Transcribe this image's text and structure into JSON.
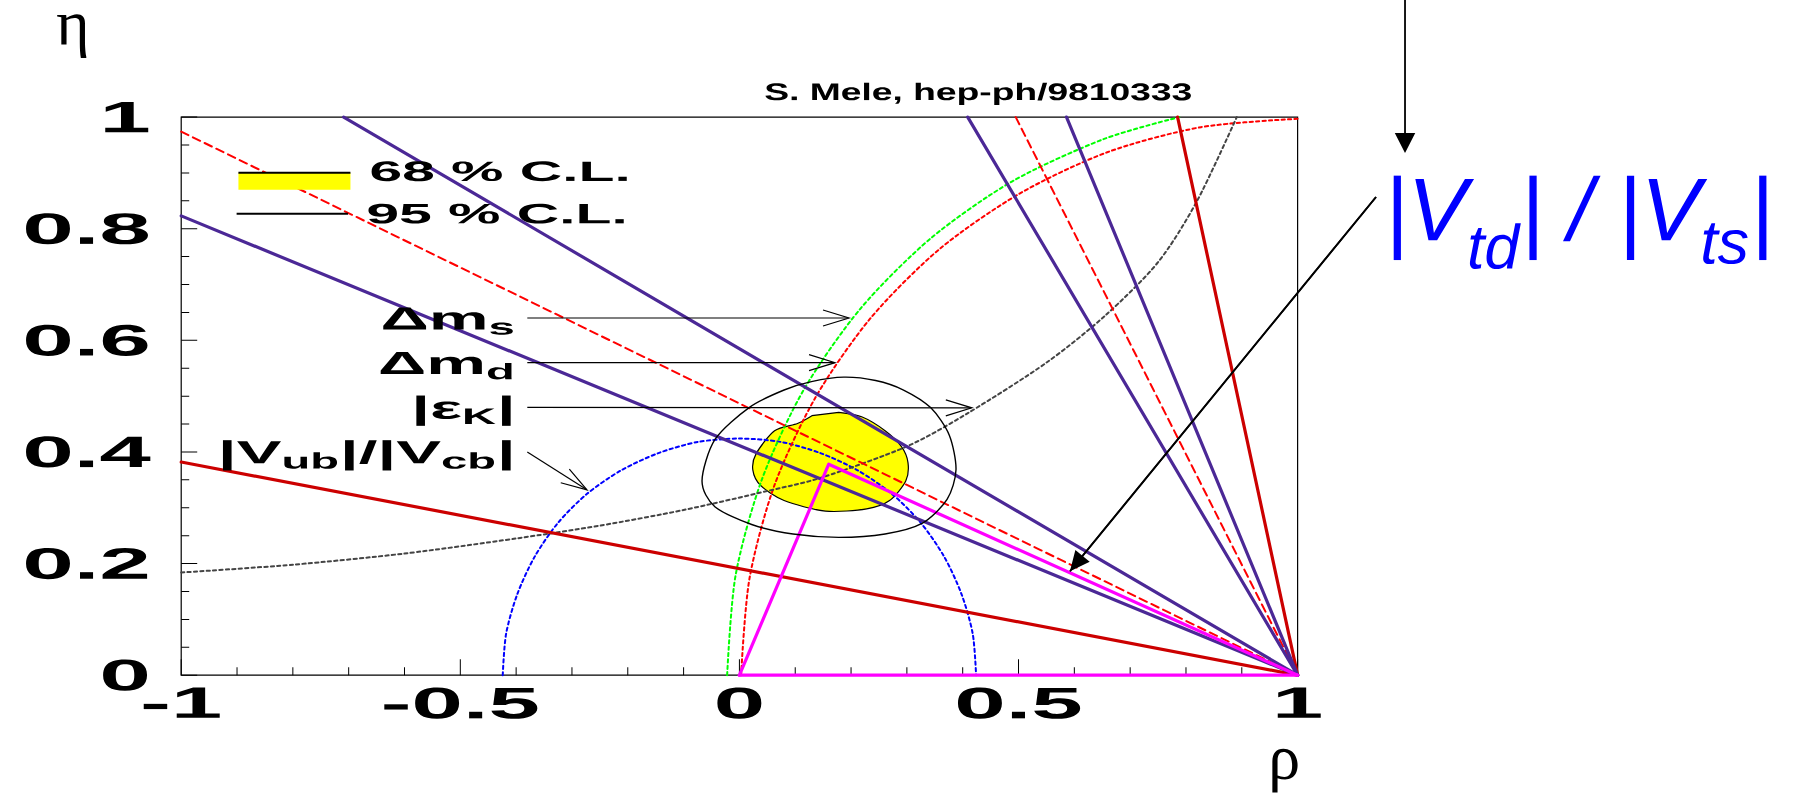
{
  "chart_data": {
    "type": "line",
    "xlabel": "ρ",
    "ylabel": "η",
    "xlim": [
      -1,
      1
    ],
    "ylim": [
      0,
      1
    ],
    "xticks": [
      -1,
      -0.5,
      0,
      0.5,
      1
    ],
    "yticks": [
      0,
      0.2,
      0.4,
      0.6,
      0.8,
      1
    ],
    "legend": "top left",
    "series": [
      {
        "name": "68 % C.L.",
        "type": "area",
        "color": "#ffff00",
        "x": [
          0.178,
          0.219,
          0.261,
          0.29,
          0.302,
          0.298,
          0.269,
          0.228,
          0.154,
          0.08,
          0.038,
          0.024,
          0.03,
          0.063,
          0.104,
          0.13
        ],
        "values": [
          0.471,
          0.463,
          0.438,
          0.41,
          0.381,
          0.348,
          0.313,
          0.298,
          0.294,
          0.313,
          0.34,
          0.368,
          0.397,
          0.438,
          0.451,
          0.465
        ]
      },
      {
        "color": "#0000ff",
        "line_style": "dotted",
        "x": [
          -0.424,
          -0.418,
          -0.398,
          -0.367,
          -0.325,
          -0.273,
          -0.212,
          -0.145,
          -0.074,
          0,
          0.074,
          0.145,
          0.212,
          0.273,
          0.325,
          0.367,
          0.398,
          0.418,
          0.424
        ],
        "values": [
          0,
          0.074,
          0.145,
          0.212,
          0.273,
          0.325,
          0.367,
          0.398,
          0.418,
          0.424,
          0.418,
          0.398,
          0.367,
          0.325,
          0.273,
          0.212,
          0.145,
          0.074,
          0
        ]
      },
      {
        "color": "#00ff00",
        "line_style": "dotted",
        "x": [
          -0.022,
          -0.007,
          0.04,
          0.115,
          0.217,
          0.343,
          0.489,
          0.651,
          0.788
        ],
        "values": [
          0,
          0.178,
          0.35,
          0.511,
          0.657,
          0.783,
          0.885,
          0.96,
          1
        ]
      },
      {
        "color": "#ff0000",
        "line_style": "dotted",
        "x": [
          0.003,
          0.018,
          0.063,
          0.137,
          0.236,
          0.359,
          0.502,
          0.659,
          0.827,
          1
        ],
        "values": [
          0,
          0.173,
          0.341,
          0.499,
          0.641,
          0.764,
          0.863,
          0.937,
          0.982,
          0.997
        ]
      },
      {
        "color": "#444444",
        "line_style": "dotted",
        "x": [
          -1,
          -0.8,
          -0.6,
          -0.4,
          -0.25,
          -0.1,
          0.05,
          0.15,
          0.3,
          0.41,
          0.55,
          0.656,
          0.75,
          0.82,
          0.891
        ],
        "values": [
          0.184,
          0.198,
          0.218,
          0.245,
          0.268,
          0.296,
          0.33,
          0.355,
          0.41,
          0.47,
          0.56,
          0.645,
          0.74,
          0.85,
          1
        ]
      },
      {
        "color": "#ff0000",
        "line_style": "dashed",
        "x": [
          -1,
          1
        ],
        "values": [
          0.974,
          0
        ]
      },
      {
        "color": "#ff0000",
        "line_style": "dashed",
        "x": [
          0.495,
          1
        ],
        "values": [
          1,
          0
        ]
      },
      {
        "color": "#cc0000",
        "line_style": "solid",
        "x": [
          -1,
          1
        ],
        "values": [
          0.382,
          0
        ]
      },
      {
        "color": "#cc0000",
        "line_style": "solid",
        "x": [
          0.785,
          1
        ],
        "values": [
          1,
          0
        ]
      },
      {
        "color": "#4b2896",
        "line_style": "solid",
        "x": [
          -1,
          1
        ],
        "values": [
          0.823,
          0
        ]
      },
      {
        "color": "#4b2896",
        "line_style": "solid",
        "x": [
          -0.709,
          1
        ],
        "values": [
          1,
          0
        ]
      },
      {
        "color": "#4b2896",
        "line_style": "solid",
        "x": [
          0.409,
          1
        ],
        "values": [
          1,
          0
        ]
      },
      {
        "color": "#4b2896",
        "line_style": "solid",
        "x": [
          0.586,
          1
        ],
        "values": [
          1,
          0
        ]
      },
      {
        "color": "#ff00ff",
        "line_style": "solid",
        "x": [
          0,
          1
        ],
        "values": [
          0,
          0
        ]
      },
      {
        "color": "#ff00ff",
        "line_style": "solid",
        "x": [
          0,
          0.16,
          1
        ],
        "values": [
          0,
          0.378,
          0
        ]
      }
    ],
    "annotations": [
      {
        "text": "Δm$_{s}$",
        "x": 0.2,
        "y": 0.64
      },
      {
        "text": "Δm$_{d}$",
        "x": 0.175,
        "y": 0.56
      },
      {
        "text": "|ε$_{K}$|",
        "x": 0.42,
        "y": 0.479
      },
      {
        "text": "|V$_{ub}$|/|V$_{cb}$|",
        "x": -0.27,
        "y": 0.33
      },
      {
        "text": "|V$_{td}$| / |V$_{ts}$|",
        "x": 0.592,
        "y": 0.186
      },
      "95 % C.L.",
      "S. Mele, hep-ph/9810333"
    ]
  }
}
